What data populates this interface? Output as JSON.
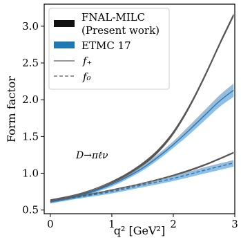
{
  "chart_data": {
    "type": "line",
    "xlabel": "q² [GeV²]",
    "ylabel": "Form factor",
    "xlim": [
      -0.1,
      3.0
    ],
    "ylim": [
      0.45,
      3.3
    ],
    "x_ticks": [
      0,
      1,
      2,
      3
    ],
    "y_ticks": [
      0.5,
      1.0,
      1.5,
      2.0,
      2.5,
      3.0
    ],
    "x_tick_labels": [
      "0",
      "1",
      "2",
      "3"
    ],
    "y_tick_labels": [
      "0.5",
      "1.0",
      "1.5",
      "2.0",
      "2.5",
      "3.0"
    ],
    "grid": false,
    "legend_position": "top-left",
    "legend": {
      "fnal_label_line1": "FNAL-MILC",
      "fnal_label_line2": "(Present work)",
      "etmc_label": "ETMC 17",
      "fplus_label": "f₊",
      "fzero_label": "f₀"
    },
    "annotation": "D→πℓν",
    "colors": {
      "fnal": "#555555",
      "fnal_band": "#222222",
      "etmc_band": "#6fa8d6",
      "etmc_line": "#2a7ab8",
      "etmc_legend": "#1f77b4"
    },
    "series": [
      {
        "name": "FNAL-MILC (Present work)",
        "component": "f₊",
        "style": "solid",
        "x": [
          0,
          0.25,
          0.5,
          0.75,
          1.0,
          1.25,
          1.5,
          1.75,
          2.0,
          2.25,
          2.5,
          2.75,
          2.98
        ],
        "values": [
          0.62,
          0.66,
          0.71,
          0.78,
          0.87,
          0.98,
          1.12,
          1.3,
          1.55,
          1.89,
          2.3,
          2.75,
          3.15
        ],
        "band": 0.025
      },
      {
        "name": "ETMC 17",
        "component": "f₊",
        "style": "solid",
        "x": [
          0,
          0.25,
          0.5,
          0.75,
          1.0,
          1.25,
          1.5,
          1.75,
          2.0,
          2.25,
          2.5,
          2.75,
          2.98
        ],
        "values": [
          0.61,
          0.65,
          0.7,
          0.77,
          0.85,
          0.95,
          1.07,
          1.22,
          1.39,
          1.58,
          1.78,
          1.98,
          2.13
        ],
        "band_low": [
          0.02,
          0.02,
          0.02,
          0.025,
          0.03,
          0.03,
          0.035,
          0.04,
          0.045,
          0.06,
          0.07,
          0.08,
          0.09
        ],
        "band_high": [
          0.02,
          0.02,
          0.02,
          0.025,
          0.03,
          0.03,
          0.035,
          0.04,
          0.045,
          0.06,
          0.07,
          0.08,
          0.09
        ]
      },
      {
        "name": "FNAL-MILC (Present work)",
        "component": "f₀",
        "style": "dashed",
        "x": [
          0,
          0.5,
          1.0,
          1.5,
          2.0,
          2.5,
          2.98
        ],
        "values": [
          0.62,
          0.69,
          0.77,
          0.86,
          0.97,
          1.11,
          1.28
        ],
        "band": 0.012
      },
      {
        "name": "ETMC 17",
        "component": "f₀",
        "style": "dashed",
        "x": [
          0,
          0.5,
          1.0,
          1.5,
          2.0,
          2.5,
          2.98
        ],
        "values": [
          0.61,
          0.68,
          0.75,
          0.84,
          0.93,
          1.04,
          1.14
        ],
        "band_low": [
          0.02,
          0.02,
          0.025,
          0.03,
          0.035,
          0.045,
          0.05
        ],
        "band_high": [
          0.02,
          0.02,
          0.025,
          0.03,
          0.035,
          0.04,
          0.04
        ]
      }
    ]
  }
}
